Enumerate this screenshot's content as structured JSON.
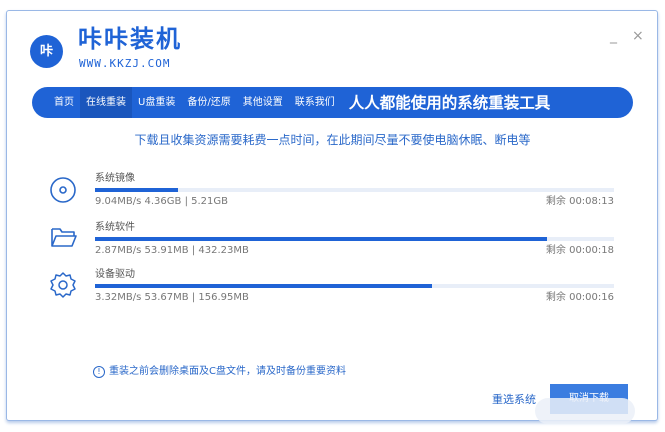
{
  "app": {
    "brand": "咔咔装机",
    "url": "WWW.KKZJ.COM",
    "logo_glyph": "咔",
    "minimize": "_",
    "close": "×"
  },
  "nav": {
    "items": [
      {
        "label": "首页"
      },
      {
        "label": "在线重装",
        "active": true
      },
      {
        "label": "U盘重装"
      },
      {
        "label": "备份/还原"
      },
      {
        "label": "其他设置"
      },
      {
        "label": "联系我们"
      }
    ],
    "slogan": "人人都能使用的系统重装工具"
  },
  "notice": "下载且收集资源需要耗费一点时间，在此期间尽量不要使电脑休眠、断电等",
  "downloads": [
    {
      "icon": "disc-icon",
      "name": "系统镜像",
      "progress": 0.16,
      "info": "9.04MB/s 4.36GB | 5.21GB",
      "remaining": "剩余 00:08:13"
    },
    {
      "icon": "folder-icon",
      "name": "系统软件",
      "progress": 0.87,
      "info": "2.87MB/s 53.91MB | 432.23MB",
      "remaining": "剩余 00:00:18"
    },
    {
      "icon": "gear-icon",
      "name": "设备驱动",
      "progress": 0.65,
      "info": "3.32MB/s 53.67MB | 156.95MB",
      "remaining": "剩余 00:00:16"
    }
  ],
  "footer": {
    "warning": "重装之前会删除桌面及C盘文件，请及时备份重要资料",
    "reselect": "重选系统",
    "cancel": "取消下载"
  },
  "colors": {
    "accent": "#1f63d6"
  }
}
